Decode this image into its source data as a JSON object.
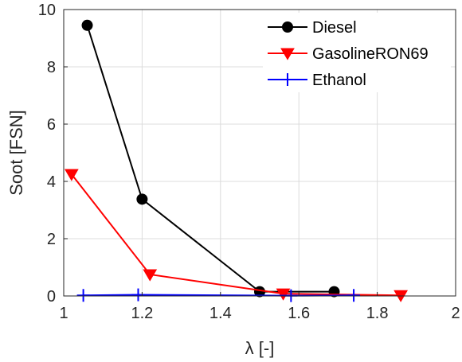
{
  "chart_data": {
    "type": "line",
    "xlabel": "λ [-]",
    "ylabel": "Soot [FSN]",
    "xlim": [
      1,
      2
    ],
    "ylim": [
      0,
      10
    ],
    "xticks": [
      "1",
      "1.2",
      "1.4",
      "1.6",
      "1.8",
      "2"
    ],
    "yticks": [
      "0",
      "2",
      "4",
      "6",
      "8",
      "10"
    ],
    "grid": true,
    "legend_position": "top-right",
    "series": [
      {
        "name": "Diesel",
        "color": "#000000",
        "marker": "circle",
        "x": [
          1.06,
          1.2,
          1.5,
          1.69
        ],
        "y": [
          9.45,
          3.38,
          0.15,
          0.15
        ]
      },
      {
        "name": "GasolineRON69",
        "color": "#ff0000",
        "marker": "triangle-down",
        "x": [
          1.02,
          1.22,
          1.56,
          1.86
        ],
        "y": [
          4.25,
          0.75,
          0.08,
          0.02
        ]
      },
      {
        "name": "Ethanol",
        "color": "#0000ff",
        "marker": "plus",
        "x": [
          1.05,
          1.19,
          1.58,
          1.74
        ],
        "y": [
          0.02,
          0.04,
          0.01,
          0.02
        ]
      }
    ]
  }
}
